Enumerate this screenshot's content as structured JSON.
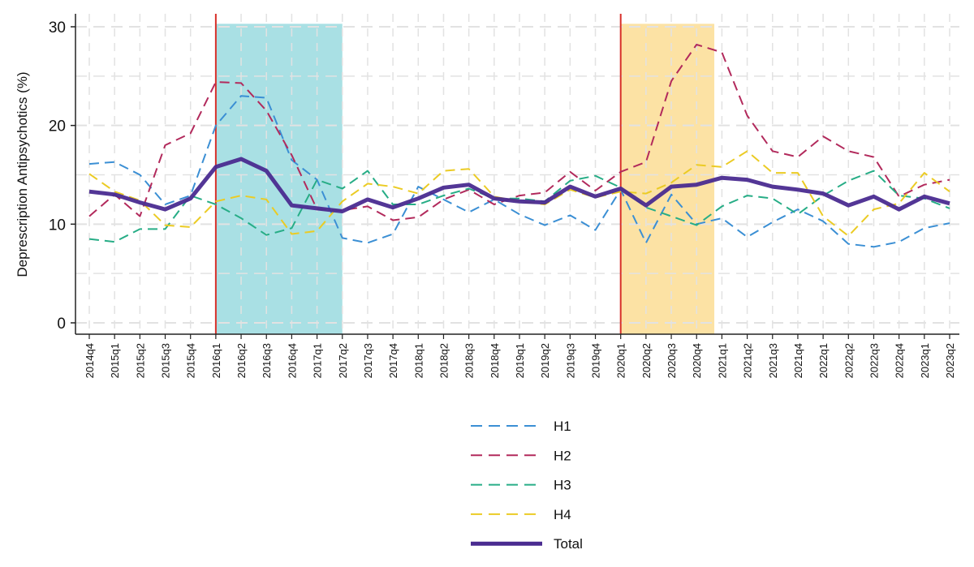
{
  "chart_data": {
    "type": "line",
    "title": "",
    "xlabel": "",
    "ylabel": "Deprescription Antipsychotics (%)",
    "ylim": [
      -1.2,
      31.5
    ],
    "yticks": [
      0,
      10,
      20,
      30
    ],
    "grid": true,
    "legend_position": "bottom",
    "categories": [
      "2014q4",
      "2015q1",
      "2015q2",
      "2015q3",
      "2015q4",
      "2016q1",
      "2016q2",
      "2016q3",
      "2016q4",
      "2017q1",
      "2017q2",
      "2017q3",
      "2017q4",
      "2018q1",
      "2018q2",
      "2018q3",
      "2018q4",
      "2019q1",
      "2019q2",
      "2019q3",
      "2019q4",
      "2020q1",
      "2020q2",
      "2020q3",
      "2020q4",
      "2021q1",
      "2021q2",
      "2021q3",
      "2021q4",
      "2022q1",
      "2022q2",
      "2022q3",
      "2022q4",
      "2023q1",
      "2023q2"
    ],
    "shaded_periods": [
      {
        "from": "2016q1",
        "to": "2017q2",
        "color": "#a9e0e4"
      },
      {
        "from": "2020q1",
        "to": "2020q4",
        "end_offset": 0.7,
        "color": "#fce2a4"
      }
    ],
    "vertical_lines": [
      {
        "at": "2016q1",
        "color": "#d8302a"
      },
      {
        "at": "2020q1",
        "color": "#d8302a"
      }
    ],
    "series": [
      {
        "name": "H1",
        "style": "dashed",
        "color": "#3b8fd4",
        "values": [
          16.1,
          16.3,
          15.0,
          12.0,
          12.9,
          20.0,
          23.0,
          22.8,
          16.5,
          14.5,
          8.6,
          8.1,
          9.0,
          13.8,
          12.5,
          11.2,
          12.5,
          11.0,
          9.9,
          10.9,
          9.4,
          13.5,
          8.1,
          13.0,
          10.0,
          10.6,
          8.7,
          10.2,
          11.5,
          10.3,
          8.0,
          7.7,
          8.2,
          9.6,
          10.1
        ]
      },
      {
        "name": "H2",
        "style": "dashed",
        "color": "#b22a5c",
        "values": [
          10.8,
          13.0,
          10.8,
          18.0,
          19.2,
          24.4,
          24.3,
          21.5,
          17.0,
          11.5,
          11.4,
          11.8,
          10.4,
          10.7,
          12.5,
          13.5,
          12.0,
          12.9,
          13.2,
          15.3,
          13.4,
          15.3,
          16.3,
          24.5,
          28.2,
          27.4,
          21.0,
          17.4,
          16.8,
          18.9,
          17.4,
          16.8,
          12.8,
          14.0,
          14.5
        ]
      },
      {
        "name": "H3",
        "style": "dashed",
        "color": "#27ad86",
        "values": [
          8.5,
          8.2,
          9.5,
          9.5,
          12.9,
          12.0,
          10.6,
          8.9,
          9.6,
          14.5,
          13.6,
          15.4,
          12.0,
          12.0,
          12.9,
          13.6,
          12.6,
          12.6,
          12.3,
          14.4,
          14.9,
          13.7,
          11.7,
          10.8,
          9.9,
          11.8,
          12.9,
          12.6,
          11.0,
          12.9,
          14.4,
          15.4,
          12.9,
          12.6,
          11.6
        ]
      },
      {
        "name": "H4",
        "style": "dashed",
        "color": "#ebcb24",
        "values": [
          15.1,
          13.3,
          12.4,
          9.9,
          9.7,
          12.3,
          12.9,
          12.5,
          9.0,
          9.3,
          12.3,
          14.1,
          13.8,
          13.1,
          15.4,
          15.6,
          12.8,
          12.3,
          12.0,
          13.5,
          12.7,
          13.3,
          13.1,
          14.2,
          16.0,
          15.8,
          17.4,
          15.2,
          15.2,
          10.8,
          8.8,
          11.5,
          12.1,
          15.2,
          13.3
        ]
      },
      {
        "name": "Total",
        "style": "solid",
        "color": "#4a2b90",
        "values": [
          13.3,
          13.0,
          12.2,
          11.5,
          12.6,
          15.8,
          16.6,
          15.4,
          11.9,
          11.6,
          11.3,
          12.5,
          11.7,
          12.6,
          13.7,
          14.0,
          12.6,
          12.3,
          12.2,
          13.8,
          12.8,
          13.6,
          11.9,
          13.8,
          14.0,
          14.7,
          14.5,
          13.8,
          13.5,
          13.1,
          11.9,
          12.8,
          11.5,
          12.8,
          12.1
        ]
      }
    ]
  }
}
